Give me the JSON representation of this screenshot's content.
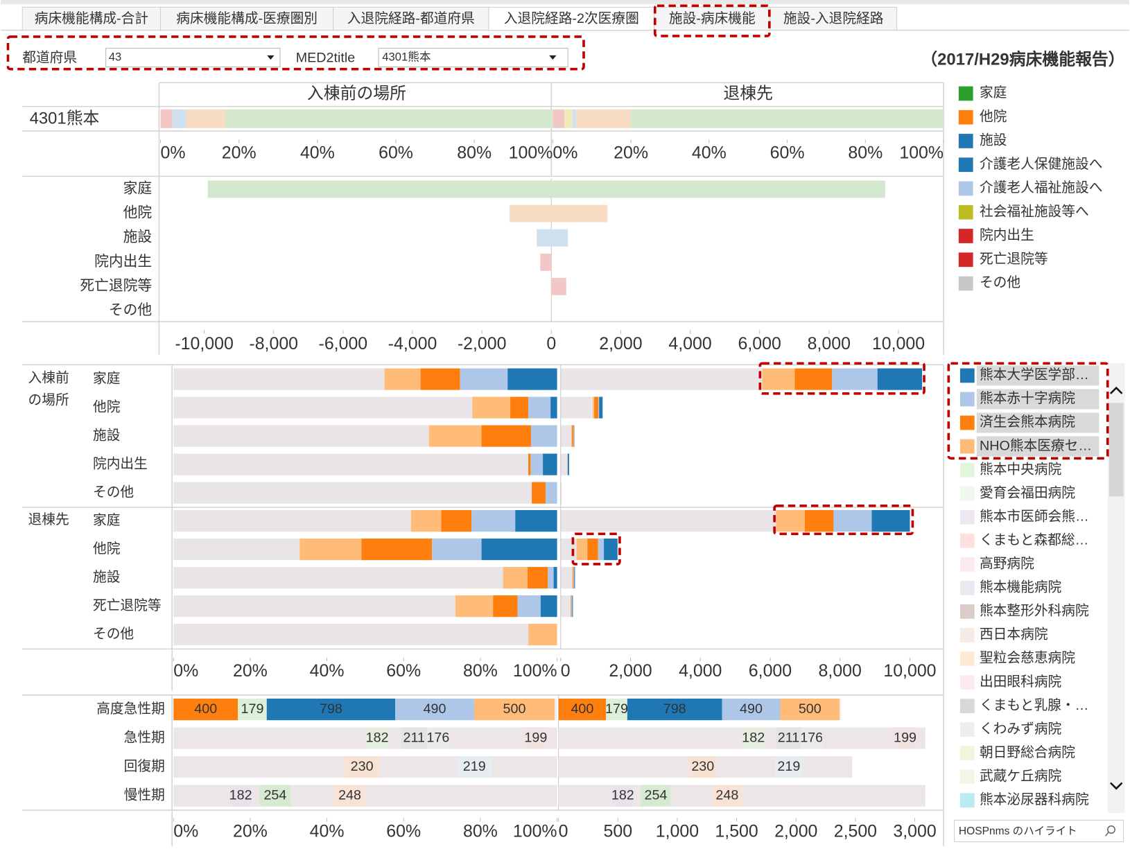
{
  "tabs": [
    "病床機能構成-合計",
    "病床機能構成-医療圏別",
    "入退院経路-都道府県",
    "入退院経路-2次医療圏",
    "施設-病床機能",
    "施設-入退院経路"
  ],
  "active_tab": 3,
  "filters": [
    {
      "label": "都道府県",
      "value": "43"
    },
    {
      "label": "MED2title",
      "value": "4301熊本"
    }
  ],
  "report_title": "（2017/H29病床機能報告）",
  "legend_reason": [
    {
      "name": "家庭",
      "color": "#2ca02c"
    },
    {
      "name": "他院",
      "color": "#ff7f0e"
    },
    {
      "name": "施設",
      "color": "#1f77b4"
    },
    {
      "name": "介護老人保健施設へ",
      "color": "#1f77b4"
    },
    {
      "name": "介護老人福祉施設へ",
      "color": "#aec7e8"
    },
    {
      "name": "社会福祉施設等へ",
      "color": "#bcbd22"
    },
    {
      "name": "院内出生",
      "color": "#d62728"
    },
    {
      "name": "死亡退院等",
      "color": "#d62728"
    },
    {
      "name": "その他",
      "color": "#c7c7c7"
    }
  ],
  "other_hospitals": [
    {
      "name": "熊本中央病院",
      "color": "#98df8a"
    },
    {
      "name": "愛育会福田病院",
      "color": "#c7e9c0"
    },
    {
      "name": "熊本市医師会熊…",
      "color": "#c5b0d5"
    },
    {
      "name": "くまもと森都総…",
      "color": "#ff9896"
    },
    {
      "name": "高野病院",
      "color": "#f7b6d2"
    },
    {
      "name": "熊本機能病院",
      "color": "#c5b0d5"
    },
    {
      "name": "熊本整形外科病院",
      "color": "#8c564b"
    },
    {
      "name": "西日本病院",
      "color": "#e7b9b1"
    },
    {
      "name": "聖粒会慈恵病院",
      "color": "#ffbb78"
    },
    {
      "name": "出田眼科病院",
      "color": "#f7b6d2"
    },
    {
      "name": "くまもと乳腺・…",
      "color": "#7f7f7f"
    },
    {
      "name": "くわみず病院",
      "color": "#c7c7c7"
    },
    {
      "name": "朝日野総合病院",
      "color": "#dbdb8d"
    },
    {
      "name": "武蔵ケ丘病院",
      "color": "#dbdbb0"
    },
    {
      "name": "熊本泌尿器科病院",
      "color": "#17becf"
    }
  ],
  "search_placeholder": "HOSPnms のハイライト",
  "chart_data": [
    {
      "type": "stacked_bar_pct",
      "headers": [
        "入棟前の場所",
        "退棟先"
      ],
      "category": "4301熊本",
      "panels": [
        {
          "values": [
            3,
            3.5,
            10,
            83.5
          ],
          "colors": [
            "#f4c7c7",
            "#cfe0ee",
            "#f9dcc4",
            "#d3e8cf"
          ]
        },
        {
          "values": [
            3,
            2,
            1,
            14,
            80
          ],
          "colors": [
            "#f4c7c7",
            "#f2eabb",
            "#cfe0ee",
            "#f9dcc4",
            "#d3e8cf"
          ]
        }
      ],
      "xlim": [
        0,
        100
      ],
      "xticks": [
        {
          "value": 0,
          "label": "0%"
        },
        {
          "value": 20,
          "label": "20%"
        },
        {
          "value": 40,
          "label": "40%"
        },
        {
          "value": 60,
          "label": "60%"
        },
        {
          "value": 80,
          "label": "80%"
        },
        {
          "value": 100,
          "label": "100%"
        }
      ]
    },
    {
      "type": "diverging_bar",
      "categories": [
        "家庭",
        "他院",
        "施設",
        "院内出生",
        "死亡退院等",
        "その他"
      ],
      "colors": [
        "#d3e8cf",
        "#f9dcc4",
        "#cfe0ee",
        "#f4c7c7",
        "#f4c7c7",
        "#dddddd"
      ],
      "series": [
        {
          "values": [
            -9900,
            -1200,
            -420,
            -320,
            0,
            0
          ]
        },
        {
          "values": [
            9620,
            1620,
            480,
            0,
            430,
            0
          ]
        }
      ],
      "xlim": [
        -11300,
        11300
      ],
      "xticks": [
        {
          "value": -10000,
          "label": "-10,000"
        },
        {
          "value": -8000,
          "label": "-8,000"
        },
        {
          "value": -6000,
          "label": "-6,000"
        },
        {
          "value": -4000,
          "label": "-4,000"
        },
        {
          "value": -2000,
          "label": "-2,000"
        },
        0,
        {
          "value": 2000,
          "label": "2,000"
        },
        {
          "value": 4000,
          "label": "4,000"
        },
        {
          "value": 6000,
          "label": "6,000"
        },
        {
          "value": 8000,
          "label": "8,000"
        },
        {
          "value": 10000,
          "label": "10,000"
        }
      ]
    },
    {
      "type": "facility_bar",
      "groups": [
        {
          "label": "入棟前の場所",
          "categories": [
            "家庭",
            "他院",
            "施設",
            "院内出生",
            "その他"
          ]
        },
        {
          "label": "退棟先",
          "categories": [
            "家庭",
            "他院",
            "施設",
            "死亡退院等",
            "その他"
          ]
        }
      ],
      "rest_color": "#e9e4e8",
      "rest_pct": [
        55.0,
        77.9,
        66.6,
        92.5,
        93.4,
        61.9,
        32.9,
        85.9,
        73.5,
        92.5
      ],
      "rest_count": [
        5773,
        920,
        300,
        200,
        30,
        6165,
        454,
        330,
        290,
        0
      ],
      "series": [
        {
          "name": "熊本大学医学部…",
          "color": "#1f77b4",
          "pct": [
            12.9,
            1.7,
            0,
            3.7,
            0,
            10.9,
            19.7,
            0.9,
            4.3,
            0
          ],
          "count": [
            1278,
            100,
            10,
            40,
            0,
            1093,
            392,
            20,
            20,
            0
          ]
        },
        {
          "name": "熊本赤十字病院",
          "color": "#aec7e8",
          "pct": [
            12.4,
            5.8,
            6.8,
            3.2,
            3.0,
            11.4,
            12.9,
            1.5,
            6.0,
            0
          ],
          "count": [
            1299,
            20,
            10,
            0,
            0,
            1093,
            165,
            20,
            20,
            0
          ]
        },
        {
          "name": "済生会熊本病院",
          "color": "#ff7f0e",
          "pct": [
            10.3,
            4.7,
            12.9,
            0.6,
            3.6,
            7.9,
            18.4,
            5.3,
            6.4,
            0
          ],
          "count": [
            1072,
            120,
            40,
            0,
            0,
            825,
            309,
            20,
            20,
            0
          ]
        },
        {
          "name": "NHO熊本医療セ…",
          "color": "#ffbb78",
          "pct": [
            9.4,
            9.9,
            13.7,
            0,
            0,
            7.9,
            16.1,
            6.4,
            9.8,
            7.5
          ],
          "count": [
            928,
            40,
            30,
            0,
            0,
            825,
            309,
            20,
            0,
            0
          ]
        }
      ],
      "xlim": [
        0,
        100
      ],
      "xticks": [
        {
          "value": 0,
          "label": "0%"
        },
        {
          "value": 20,
          "label": "20%"
        },
        {
          "value": 40,
          "label": "40%"
        },
        {
          "value": 60,
          "label": "60%"
        },
        {
          "value": 80,
          "label": "80%"
        },
        {
          "value": 100,
          "label": "100%"
        }
      ],
      "x2lim": [
        0,
        10800
      ],
      "x2ticks": [
        0,
        {
          "value": 2000,
          "label": "2,000"
        },
        {
          "value": 4000,
          "label": "4,000"
        },
        {
          "value": 6000,
          "label": "6,000"
        },
        {
          "value": 8000,
          "label": "8,000"
        },
        {
          "value": 10000,
          "label": "10,000"
        }
      ]
    },
    {
      "type": "bed_function_bar",
      "categories": [
        "高度急性期",
        "急性期",
        "回復期",
        "慢性期"
      ],
      "rows": [
        {
          "segments": [
            {
              "value": 400,
              "color": "#ff7f0e",
              "label_color": "#222222"
            },
            {
              "value": 179,
              "color": "#dcefd7",
              "label_color": "#c4c4c4"
            },
            {
              "value": 798,
              "color": "#1f77b4",
              "label_color": "#222222"
            },
            {
              "value": 490,
              "color": "#aec7e8",
              "label_color": "#222222"
            },
            {
              "value": 500,
              "color": "#ffbb78",
              "label_color": "#222222"
            },
            {
              "value": 15,
              "color": "#eeeeee"
            }
          ]
        },
        {
          "segments": [
            {
              "value": 1550,
              "color": "#ece6e8"
            },
            {
              "value": 182,
              "color": "#e6eedf",
              "label_color": "#c4c4c4"
            },
            {
              "value": 100,
              "color": "#ece6e8"
            },
            {
              "value": 211,
              "color": "#e3e3e3",
              "label_color": "#c4c4c4"
            },
            {
              "value": 176,
              "color": "#eaeaea",
              "label_color": "#c4c4c4"
            },
            {
              "value": 600,
              "color": "#ece6e8"
            },
            {
              "value": 199,
              "color": "#f2e3e3",
              "label_color": "#c4c4c4"
            },
            {
              "value": 72,
              "color": "#ece6e8"
            }
          ]
        },
        {
          "segments": [
            {
              "value": 1100,
              "color": "#ece6e8"
            },
            {
              "value": 230,
              "color": "#f7e2d4",
              "label_color": "#c4c4c4"
            },
            {
              "value": 500,
              "color": "#ece6e8"
            },
            {
              "value": 219,
              "color": "#e5edf3",
              "label_color": "#c4c4c4"
            },
            {
              "value": 424,
              "color": "#ece6e8"
            }
          ]
        },
        {
          "segments": [
            {
              "value": 450,
              "color": "#ece6e8"
            },
            {
              "value": 182,
              "color": "#e8e2ec",
              "label_color": "#c4c4c4"
            },
            {
              "value": 60,
              "color": "#ece6e8"
            },
            {
              "value": 254,
              "color": "#d6ead1",
              "label_color": "#c4c4c4"
            },
            {
              "value": 350,
              "color": "#ece6e8"
            },
            {
              "value": 248,
              "color": "#f7e2d4",
              "label_color": "#c4c4c4"
            },
            {
              "value": 1546,
              "color": "#ece6e8"
            }
          ]
        }
      ],
      "xlim": [
        0,
        100
      ],
      "xticks": [
        {
          "value": 0,
          "label": "0%"
        },
        {
          "value": 20,
          "label": "20%"
        },
        {
          "value": 40,
          "label": "40%"
        },
        {
          "value": 60,
          "label": "60%"
        },
        {
          "value": 80,
          "label": "80%"
        },
        {
          "value": 100,
          "label": "100%"
        }
      ],
      "x2lim": [
        0,
        3200
      ],
      "x2ticks": [
        0,
        500,
        {
          "value": 1000,
          "label": "1,000"
        },
        {
          "value": 1500,
          "label": "1,500"
        },
        {
          "value": 2000,
          "label": "2,000"
        },
        {
          "value": 2500,
          "label": "2,500"
        },
        {
          "value": 3000,
          "label": "3,000"
        }
      ]
    }
  ]
}
